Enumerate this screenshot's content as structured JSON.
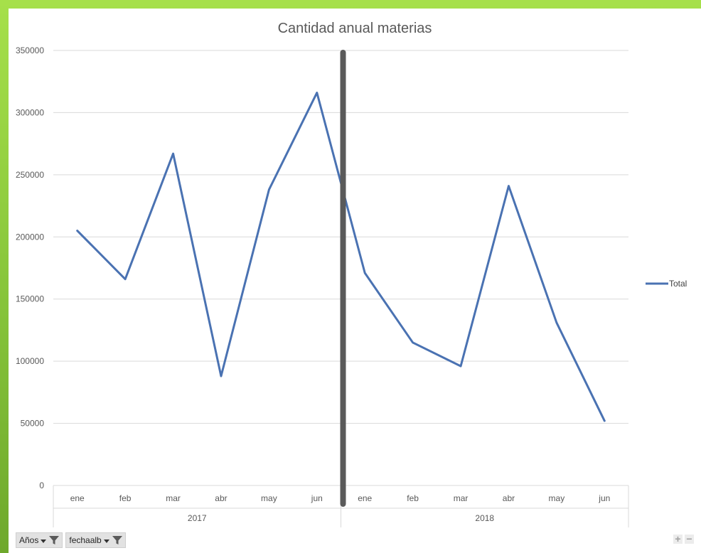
{
  "chart_data": {
    "type": "line",
    "title": "Cantidad anual materias",
    "ylim": [
      0,
      350000
    ],
    "yticks": [
      "0",
      "50000",
      "100000",
      "150000",
      "200000",
      "250000",
      "300000",
      "350000"
    ],
    "categories": [
      "ene",
      "feb",
      "mar",
      "abr",
      "may",
      "jun",
      "ene",
      "feb",
      "mar",
      "abr",
      "may",
      "jun"
    ],
    "groups": [
      {
        "label": "2017",
        "count": 6
      },
      {
        "label": "2018",
        "count": 6
      }
    ],
    "series": [
      {
        "name": "Total",
        "color": "#4a72b2",
        "values": [
          205000,
          166000,
          267000,
          88000,
          238000,
          316000,
          171000,
          115000,
          96000,
          241000,
          131000,
          52000
        ]
      }
    ],
    "grid": true,
    "legend_position": "right",
    "divider_color": "#5a5a5a"
  },
  "field_buttons": [
    {
      "label": "Años",
      "icon": "filter-funnel-icon"
    },
    {
      "label": "fechaalb",
      "icon": "filter-funnel-icon"
    }
  ],
  "zoom": {
    "plus": "+",
    "minus": "−"
  }
}
